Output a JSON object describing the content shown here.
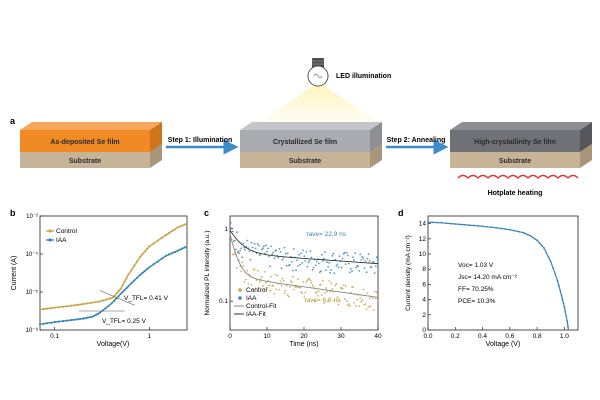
{
  "panel_a": {
    "label": "a",
    "led_label": "LED illumination",
    "step1": "Step 1: Illumination",
    "step2": "Step 2: Annealing",
    "films": [
      "As-deposited Se film",
      "Crystallized Se film",
      "High-crystallinity Se film"
    ],
    "substrate": "Substrate",
    "hotplate": "Hotplate heating",
    "colors": {
      "orange_film": "#f08a24",
      "gray_film": "#a9abb0",
      "dark_film": "#6f7176",
      "substrate": "#c7b497",
      "arrow": "#3b8ccc",
      "heating": "#d63a3a"
    }
  },
  "chart_data": [
    {
      "panel": "b",
      "type": "line",
      "scale": "log-log",
      "xlabel": "Voltage(V)",
      "ylabel": "Current (A)",
      "xlim": [
        0.07,
        2.5
      ],
      "ylim": [
        1e-08,
        0.01
      ],
      "x_ticks": [
        "0.1",
        "1"
      ],
      "y_ticks": [
        "10⁻⁸",
        "10⁻⁶",
        "10⁻⁴",
        "10⁻²"
      ],
      "annotations": [
        "V_TFL= 0.41 V",
        "V_TFL= 0.25 V"
      ],
      "legend": "top-left",
      "series": [
        {
          "name": "Control",
          "color": "#c9a448",
          "x": [
            0.07,
            0.1,
            0.15,
            0.2,
            0.3,
            0.41,
            0.5,
            0.6,
            0.8,
            1.0,
            1.5,
            2.0,
            2.5
          ],
          "y": [
            1.2e-07,
            1.5e-07,
            1.9e-07,
            2.3e-07,
            3.2e-07,
            5e-07,
            1.5e-06,
            8e-06,
            7e-05,
            0.00025,
            0.001,
            0.0025,
            0.004
          ]
        },
        {
          "name": "IAA",
          "color": "#3a86b5",
          "x": [
            0.07,
            0.1,
            0.15,
            0.2,
            0.25,
            0.3,
            0.4,
            0.5,
            0.6,
            0.8,
            1.0,
            1.5,
            2.0,
            2.5
          ],
          "y": [
            2e-08,
            2.6e-08,
            3.3e-08,
            4e-08,
            5e-08,
            8e-08,
            2.5e-07,
            8e-07,
            2e-06,
            8e-06,
            2e-05,
            8e-05,
            0.00015,
            0.00025
          ]
        }
      ]
    },
    {
      "panel": "c",
      "type": "scatter",
      "scale": "semilog-y",
      "xlabel": "Time (ns)",
      "ylabel": "Normalized PL intensity (a.u.)",
      "xlim": [
        0,
        40
      ],
      "ylim": [
        0.04,
        1.5
      ],
      "x_ticks": [
        "0",
        "10",
        "20",
        "30",
        "40"
      ],
      "y_ticks": [
        "1",
        "0.1"
      ],
      "annotations": [
        "τave= 22.9 ns",
        "τave= 6.6 ns"
      ],
      "legend": "bottom-left",
      "series": [
        {
          "name": "Control",
          "color": "#c9a448",
          "decay": {
            "a1": 0.62,
            "t1": 1.6,
            "a2": 0.22,
            "t2": 60
          }
        },
        {
          "name": "IAA",
          "color": "#3a86b5",
          "decay": {
            "a1": 0.5,
            "t1": 2.8,
            "a2": 0.46,
            "t2": 120
          }
        }
      ],
      "fits": [
        {
          "name": "Control-Fit",
          "color": "#888888"
        },
        {
          "name": "IAA-Fit",
          "color": "#333333"
        }
      ]
    },
    {
      "panel": "d",
      "type": "line",
      "xlabel": "Voltage (V)",
      "ylabel": "Current density (mA cm⁻²)",
      "xlim": [
        0,
        1.1
      ],
      "ylim": [
        0,
        15
      ],
      "x_ticks": [
        "0.0",
        "0.2",
        "0.4",
        "0.6",
        "0.8",
        "1.0"
      ],
      "y_ticks": [
        "0",
        "2",
        "4",
        "6",
        "8",
        "10",
        "12",
        "14"
      ],
      "series": [
        {
          "name": "",
          "color": "#3a86b5",
          "x": [
            0,
            0.1,
            0.2,
            0.3,
            0.4,
            0.5,
            0.6,
            0.7,
            0.75,
            0.8,
            0.85,
            0.9,
            0.95,
            0.98,
            1.0,
            1.02,
            1.03
          ],
          "y": [
            14.2,
            14.1,
            13.95,
            13.8,
            13.65,
            13.45,
            13.2,
            12.8,
            12.4,
            11.8,
            10.8,
            9.0,
            6.5,
            4.5,
            3.0,
            1.2,
            0
          ]
        }
      ],
      "metrics": [
        "Voc= 1.03 V",
        "Jsc= 14.20 mA cm⁻²",
        "FF= 70.25%",
        "PCE= 10.3%"
      ]
    }
  ]
}
